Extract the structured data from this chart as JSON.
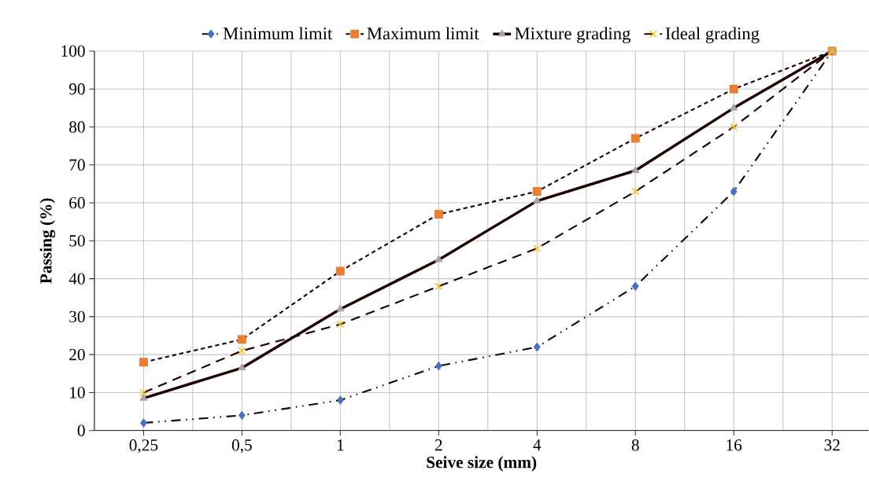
{
  "chart_data": {
    "type": "line",
    "xlabel": "Seive size (mm)",
    "ylabel": "Passing (%)",
    "categories": [
      "0,25",
      "0,5",
      "1",
      "2",
      "4",
      "8",
      "16",
      "32"
    ],
    "series": [
      {
        "name": "Minimum limit",
        "color": "#4472c4",
        "marker": "diamond",
        "line_style": "dashdotdotted",
        "values": [
          2,
          4,
          8,
          17,
          22,
          38,
          63,
          100
        ]
      },
      {
        "name": "Maximum limit",
        "color": "#ed7d31",
        "marker": "square",
        "line_style": "dashed",
        "values": [
          18,
          24,
          42,
          57,
          63,
          77,
          90,
          100
        ]
      },
      {
        "name": "Mixture grading",
        "color": "#a5a5a5",
        "marker": "triangle",
        "line_style": "solid",
        "values": [
          8.5,
          16.5,
          32,
          45,
          60.5,
          68.5,
          85,
          100
        ]
      },
      {
        "name": "Ideal grading",
        "color": "#ffc000",
        "marker": "cross",
        "line_style": "loosely dashed",
        "values": [
          10,
          21,
          28,
          38,
          48,
          63,
          80,
          100
        ]
      }
    ],
    "ylim": [
      0,
      100
    ],
    "yticks": [
      0,
      10,
      20,
      30,
      40,
      50,
      60,
      70,
      80,
      90,
      100
    ],
    "grid": true,
    "legend": "top"
  }
}
